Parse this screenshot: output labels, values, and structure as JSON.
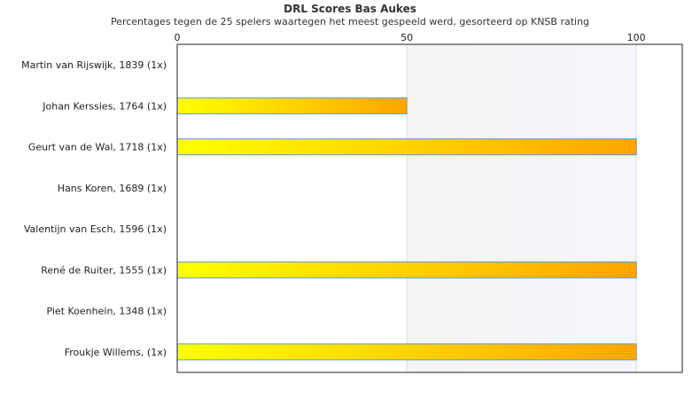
{
  "chart_data": {
    "type": "bar",
    "orientation": "horizontal",
    "title": "DRL Scores Bas Aukes",
    "subtitle": "Percentages tegen de 25 spelers waartegen het meest gespeeld werd, gesorteerd op KNSB rating",
    "categories": [
      "Martin van Rijswijk, 1839 (1x)",
      "Johan Kerssies, 1764 (1x)",
      "Geurt van de Wal, 1718 (1x)",
      "Hans Koren, 1689 (1x)",
      "Valentijn van Esch, 1596 (1x)",
      "René de Ruiter, 1555 (1x)",
      "Piet Koenhein, 1348 (1x)",
      "Froukje Willems,  (1x)"
    ],
    "values": [
      0,
      50,
      100,
      0,
      0,
      100,
      0,
      100
    ],
    "xlim": [
      0,
      110
    ],
    "xticks": [
      0,
      50,
      100
    ],
    "axis_position": "top",
    "grid": true,
    "bar_gradient": [
      "#ffff00",
      "#ffa500"
    ],
    "bar_border": "#5b9bd5"
  }
}
